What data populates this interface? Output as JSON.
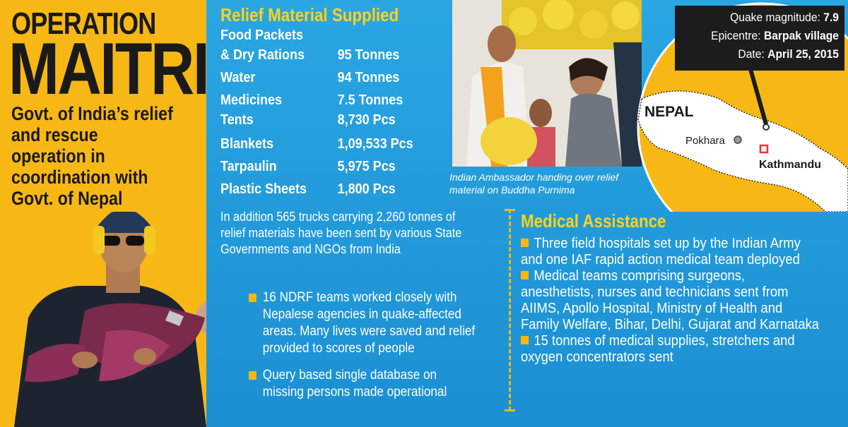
{
  "header": {
    "line1": "OPERATION",
    "line2": "MAITRI",
    "subtitle": "Govt. of India’s relief and rescue operation in coordination with Govt. of Nepal"
  },
  "relief": {
    "title": "Relief Material Supplied",
    "items": [
      {
        "name": "Food Packets",
        "value": ""
      },
      {
        "name": "& Dry Rations",
        "value": "95 Tonnes"
      },
      {
        "name": "Water",
        "value": "94 Tonnes"
      },
      {
        "name": "Medicines",
        "value": "7.5 Tonnes"
      },
      {
        "name": "Tents",
        "value": "8,730 Pcs"
      },
      {
        "name": "Blankets",
        "value": "1,09,533 Pcs"
      },
      {
        "name": "Tarpaulin",
        "value": "5,975 Pcs"
      },
      {
        "name": "Plastic Sheets",
        "value": "1,800 Pcs"
      }
    ],
    "addition": "In addition 565 trucks carrying 2,260 tonnes of relief materials have been sent by various State Governments and NGOs from India"
  },
  "ndrf": {
    "bullets": [
      "16 NDRF teams worked closely with Nepalese agencies in quake-affected areas. Many lives were saved and relief provided to scores of people",
      "Query based single database on missing persons made operational"
    ]
  },
  "medical": {
    "title": "Medical Assistance",
    "bullets": [
      "Three field hospitals set up by the Indian Army and one IAF rapid action medical team deployed",
      "Medical teams comprising surgeons, anesthetists, nurses and technicians sent from AIIMS, Apollo Hospital, Ministry of Health and Family Welfare, Bihar, Delhi, Gujarat and Karnataka",
      "15 tonnes of medical supplies, stretchers and oxygen concentrators sent"
    ]
  },
  "photo_caption": "Indian Ambassador handing over relief material on Buddha Purnima",
  "quake_info": {
    "magnitude_label": "Quake magnitude:",
    "magnitude": "7.9",
    "epicentre_label": "Epicentre:",
    "epicentre": "Barpak village",
    "date_label": "Date:",
    "date": "April 25, 2015"
  },
  "map": {
    "country": "NEPAL",
    "city1": "Pokhara",
    "city2": "Kathmandu"
  },
  "colors": {
    "accent_yellow": "#f7b816",
    "title_yellow": "#ffd21a",
    "blue": "#1f9fe0",
    "dark": "#1a1a1a"
  }
}
